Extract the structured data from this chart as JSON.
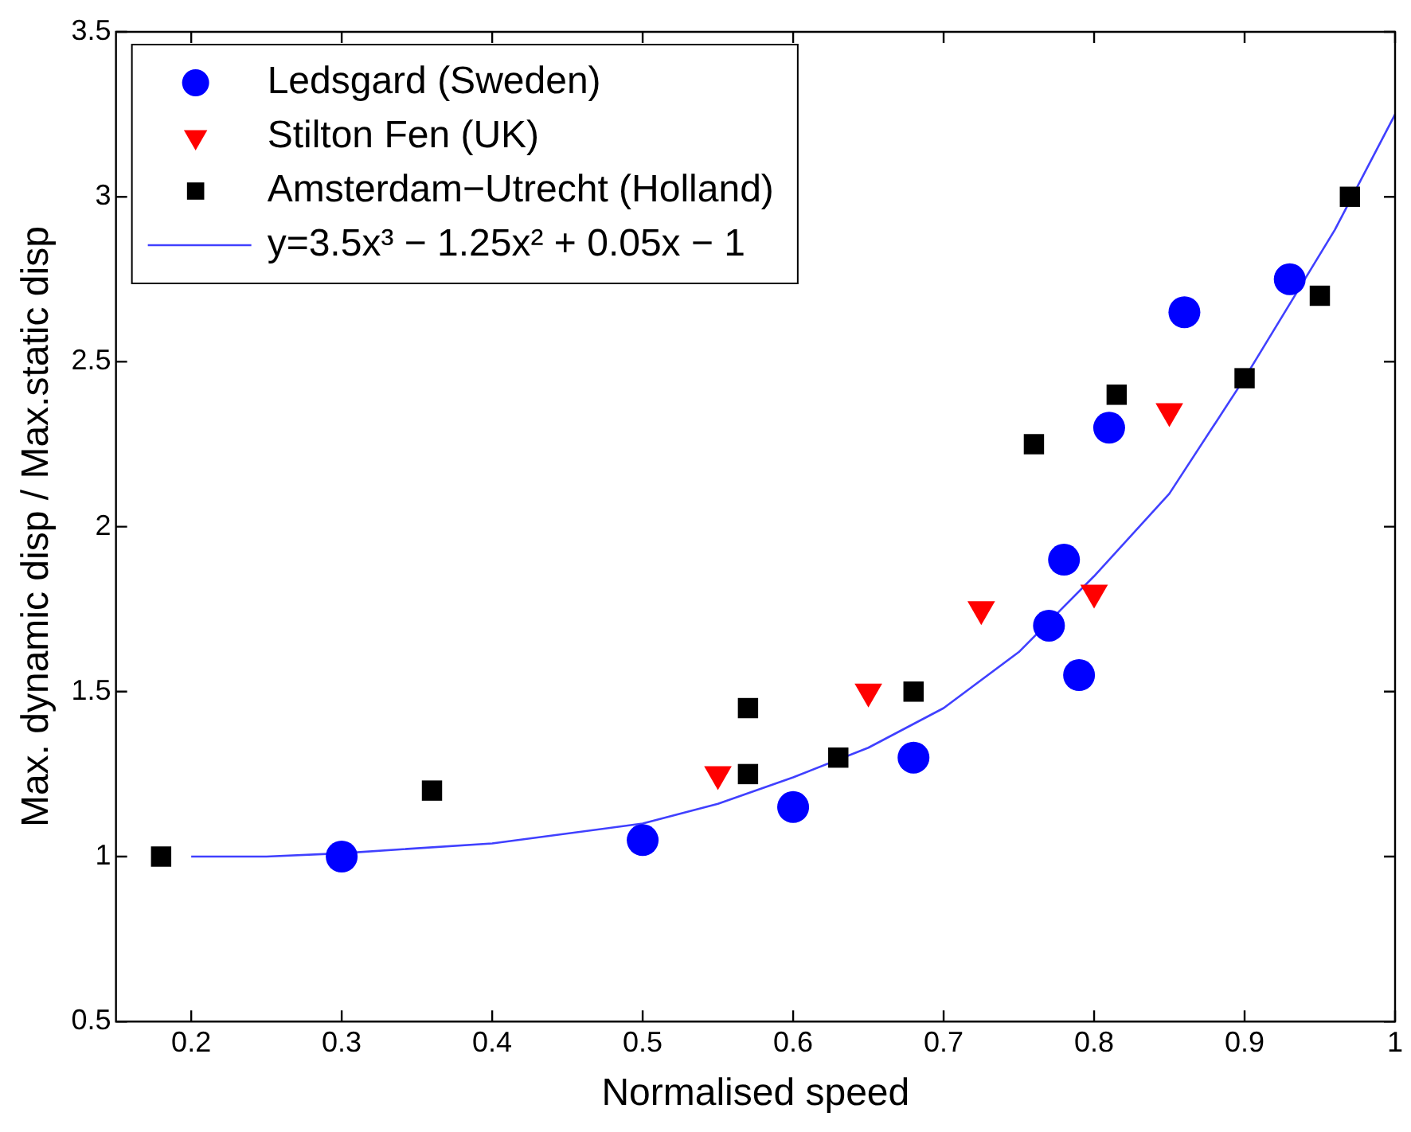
{
  "chart_data": {
    "type": "scatter",
    "xlabel": "Normalised speed",
    "ylabel": "Max. dynamic disp / Max.static disp",
    "xlim": [
      0.15,
      1
    ],
    "xticks": [
      0.2,
      0.3,
      0.4,
      0.5,
      0.6,
      0.7,
      0.8,
      0.9,
      1
    ],
    "ylim": [
      0.5,
      3.5
    ],
    "yticks": [
      0.5,
      1,
      1.5,
      2,
      2.5,
      3,
      3.5
    ],
    "grid": false,
    "legend": "top left",
    "series": [
      {
        "name": "Ledsgard (Sweden)",
        "color": "#0000ff",
        "marker": "circle",
        "x": [
          0.3,
          0.5,
          0.6,
          0.68,
          0.77,
          0.78,
          0.79,
          0.81,
          0.86,
          0.93
        ],
        "values": [
          1.0,
          1.05,
          1.15,
          1.3,
          1.7,
          1.9,
          1.55,
          2.3,
          2.65,
          2.75
        ]
      },
      {
        "name": "Stilton Fen (UK)",
        "color": "#ff0000",
        "marker": "triangle",
        "x": [
          0.55,
          0.65,
          0.725,
          0.8,
          0.85
        ],
        "values": [
          1.25,
          1.5,
          1.75,
          1.8,
          2.35
        ]
      },
      {
        "name": "Amsterdam−Utrecht (Holland)",
        "color": "#000000",
        "marker": "square",
        "x": [
          0.18,
          0.36,
          0.57,
          0.57,
          0.63,
          0.68,
          0.76,
          0.815,
          0.9,
          0.95,
          0.97
        ],
        "values": [
          1.0,
          1.2,
          1.45,
          1.25,
          1.3,
          1.5,
          2.25,
          2.4,
          2.45,
          2.7,
          3.0
        ]
      },
      {
        "name": "y=3.5x³ − 1.25x² + 0.05x − 1",
        "type": "line",
        "color": "#4040ff",
        "marker": "none",
        "line_style": "solid",
        "x": [
          0.2,
          0.25,
          0.3,
          0.4,
          0.5,
          0.55,
          0.6,
          0.65,
          0.7,
          0.75,
          0.8,
          0.85,
          0.9,
          0.96,
          1.0
        ],
        "values": [
          1.0,
          1.0,
          1.01,
          1.04,
          1.1,
          1.16,
          1.24,
          1.33,
          1.45,
          1.62,
          1.85,
          2.1,
          2.45,
          2.9,
          3.25
        ]
      }
    ]
  }
}
